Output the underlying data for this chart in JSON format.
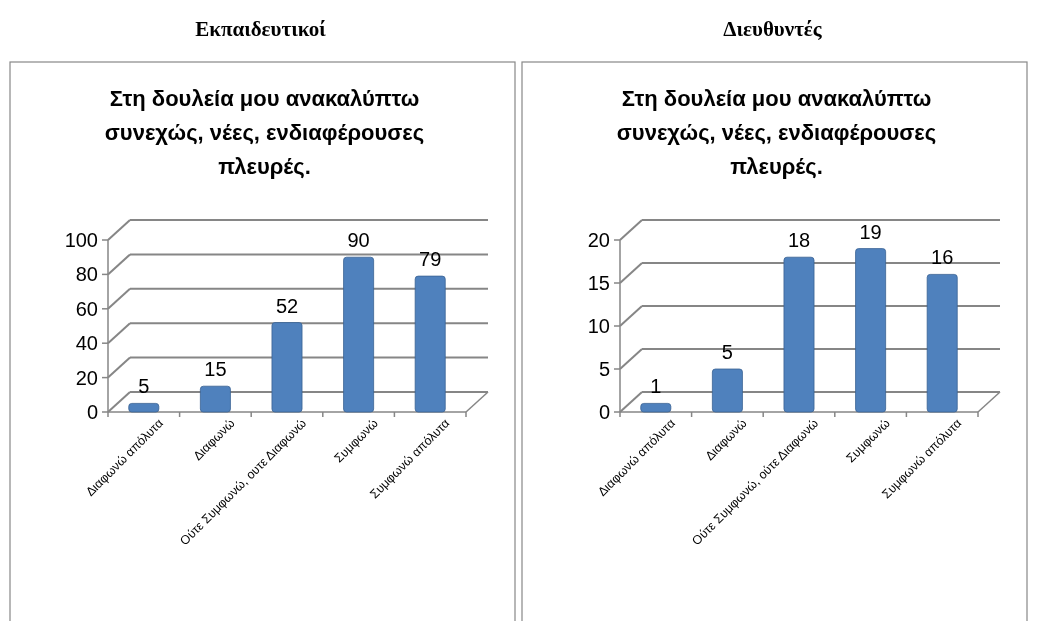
{
  "chart_data": [
    {
      "type": "bar",
      "title": "Εκπαιδευτικοί",
      "subtitle": "Στη δουλεία μου ανακαλύπτω συνεχώς, νέες, ενδιαφέρουσες πλευρές.",
      "categories": [
        "Διαφωνώ απόλυτα",
        "Διαφωνώ",
        "Ούτε Συμφωνώ, ουτε Διαφωνώ",
        "Συμφωνώ",
        "Συμφωνώ απόλυτα"
      ],
      "values": [
        5,
        15,
        52,
        90,
        79
      ],
      "color": "#4f81bd",
      "ylim": [
        0,
        100
      ],
      "yticks": [
        0,
        20,
        40,
        60,
        80,
        100
      ],
      "grid": "y",
      "data_labels": true
    },
    {
      "type": "bar",
      "title": "Διευθυντές",
      "subtitle": "Στη δουλεία μου ανακαλύπτω συνεχώς, νέες, ενδιαφέρουσες πλευρές.",
      "categories": [
        "Διαφωνώ απόλυτα",
        "Διαφωνώ",
        "Ούτε Συμφωνώ, ούτε Διαφωνώ",
        "Συμφωνώ",
        "Συμφωνώ απόλυτα"
      ],
      "values": [
        1,
        5,
        18,
        19,
        16
      ],
      "color": "#4f81bd",
      "ylim": [
        0,
        20
      ],
      "yticks": [
        0,
        5,
        10,
        15,
        20
      ],
      "grid": "y",
      "data_labels": true
    }
  ]
}
